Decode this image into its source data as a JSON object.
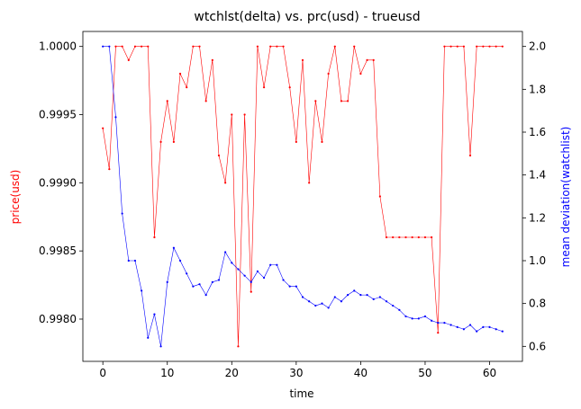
{
  "chart_data": {
    "type": "line",
    "title": "wtchlst(delta) vs. prc(usd) - trueusd",
    "xlabel": "time",
    "xlim": [
      -3.1,
      65.1
    ],
    "x_ticks": [
      0,
      10,
      20,
      30,
      40,
      50,
      60
    ],
    "y_left": {
      "label": "price(usd)",
      "color": "#ff0000",
      "ylim": [
        0.99769,
        1.00011
      ],
      "ticks": [
        0.998,
        0.9985,
        0.999,
        0.9995,
        1.0
      ],
      "tick_labels": [
        "0.9980",
        "0.9985",
        "0.9990",
        "0.9995",
        "1.0000"
      ]
    },
    "y_right": {
      "label": "mean deviation(watchlist)",
      "color": "#0000ff",
      "ylim": [
        0.53,
        2.07
      ],
      "ticks": [
        0.6,
        0.8,
        1.0,
        1.2,
        1.4,
        1.6,
        1.8,
        2.0
      ],
      "tick_labels": [
        "0.6",
        "0.8",
        "1.0",
        "1.2",
        "1.4",
        "1.6",
        "1.8",
        "2.0"
      ]
    },
    "grid": false,
    "series": [
      {
        "axis": "left",
        "color": "#ff0000",
        "x": [
          0,
          1,
          2,
          3,
          4,
          5,
          6,
          7,
          8,
          9,
          10,
          11,
          12,
          13,
          14,
          15,
          16,
          17,
          18,
          19,
          20,
          21,
          22,
          23,
          24,
          25,
          26,
          27,
          28,
          29,
          30,
          31,
          32,
          33,
          34,
          35,
          36,
          37,
          38,
          39,
          40,
          41,
          42,
          43,
          44,
          45,
          46,
          47,
          48,
          49,
          50,
          51,
          52,
          53,
          54,
          55,
          56,
          57,
          58,
          59,
          60,
          61,
          62
        ],
        "values": [
          0.9994,
          0.9991,
          1.0,
          1.0,
          0.9999,
          1.0,
          1.0,
          1.0,
          0.9986,
          0.9993,
          0.9996,
          0.9993,
          0.9998,
          0.9997,
          1.0,
          1.0,
          0.9996,
          0.9999,
          0.9992,
          0.999,
          0.9995,
          0.9978,
          0.9995,
          0.9982,
          1.0,
          0.9997,
          1.0,
          1.0,
          1.0,
          0.9997,
          0.9993,
          0.9999,
          0.999,
          0.9996,
          0.9993,
          0.9998,
          1.0,
          0.9996,
          0.9996,
          1.0,
          0.9998,
          0.9999,
          0.9999,
          0.9989,
          0.9986,
          0.9986,
          0.9986,
          0.9986,
          0.9986,
          0.9986,
          0.9986,
          0.9986,
          0.9979,
          1.0,
          1.0,
          1.0,
          1.0,
          0.9992,
          1.0,
          1.0,
          1.0,
          1.0,
          1.0
        ]
      },
      {
        "axis": "right",
        "color": "#0000ff",
        "x": [
          0,
          1,
          2,
          3,
          4,
          5,
          6,
          7,
          8,
          9,
          10,
          11,
          12,
          13,
          14,
          15,
          16,
          17,
          18,
          19,
          20,
          21,
          22,
          23,
          24,
          25,
          26,
          27,
          28,
          29,
          30,
          31,
          32,
          33,
          34,
          35,
          36,
          37,
          38,
          39,
          40,
          41,
          42,
          43,
          44,
          45,
          46,
          47,
          48,
          49,
          50,
          51,
          52,
          53,
          54,
          55,
          56,
          57,
          58,
          59,
          60,
          61,
          62
        ],
        "values": [
          2.0,
          2.0,
          1.67,
          1.22,
          1.0,
          1.0,
          0.86,
          0.64,
          0.75,
          0.6,
          0.9,
          1.06,
          1.0,
          0.94,
          0.88,
          0.89,
          0.84,
          0.9,
          0.91,
          1.04,
          0.99,
          0.96,
          0.93,
          0.9,
          0.95,
          0.92,
          0.98,
          0.98,
          0.91,
          0.88,
          0.88,
          0.83,
          0.81,
          0.79,
          0.8,
          0.78,
          0.83,
          0.81,
          0.84,
          0.86,
          0.84,
          0.84,
          0.82,
          0.83,
          0.81,
          0.79,
          0.77,
          0.74,
          0.73,
          0.73,
          0.74,
          0.72,
          0.71,
          0.71,
          0.7,
          0.69,
          0.68,
          0.7,
          0.67,
          0.69,
          0.69,
          0.68,
          0.67
        ]
      }
    ]
  }
}
